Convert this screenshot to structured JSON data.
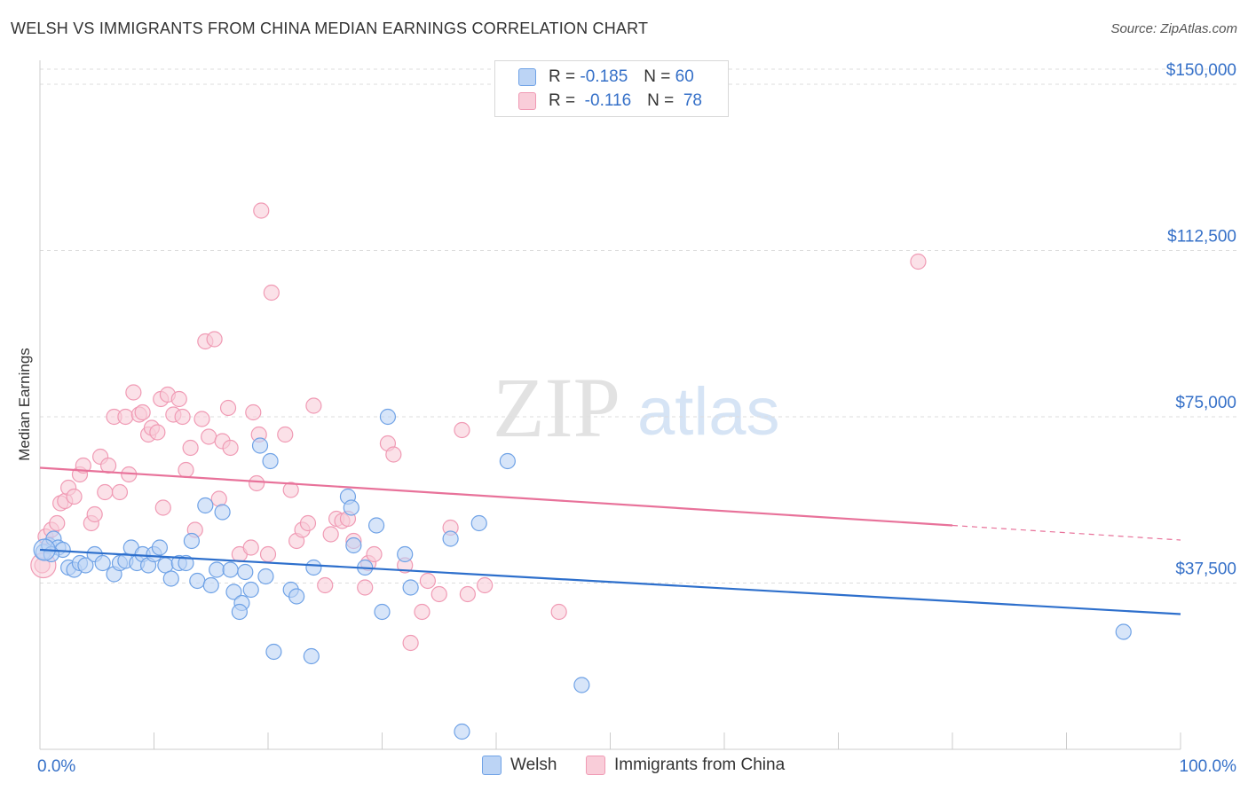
{
  "title": "WELSH VS IMMIGRANTS FROM CHINA MEDIAN EARNINGS CORRELATION CHART",
  "source": "Source: ZipAtlas.com",
  "watermark": {
    "zip": "ZIP",
    "atlas": "atlas"
  },
  "legend": {
    "rows": [
      {
        "r_label": "R =",
        "r_value": "-0.185",
        "n_label": "N =",
        "n_value": "60"
      },
      {
        "r_label": "R =",
        "r_value": "-0.116",
        "n_label": "N =",
        "n_value": "78"
      }
    ]
  },
  "colors": {
    "welsh": "#6fa2e6",
    "welsh_fill": "#bcd4f5",
    "welsh_line": "#2d6fcc",
    "china": "#f09ab4",
    "china_fill": "#f9cdd9",
    "china_line": "#e8729a",
    "axis_label": "#3570c8"
  },
  "chart_data": {
    "type": "scatter",
    "title": "WELSH VS IMMIGRANTS FROM CHINA MEDIAN EARNINGS CORRELATION CHART",
    "xlabel": "",
    "ylabel": "Median Earnings",
    "xlim": [
      0,
      100
    ],
    "ylim": [
      0,
      155000
    ],
    "x_tick_labels": [
      "0.0%",
      "100.0%"
    ],
    "y_ticks": [
      37500,
      75000,
      112500,
      150000
    ],
    "y_tick_labels": [
      "$37,500",
      "$75,000",
      "$112,500",
      "$150,000"
    ],
    "grid": true,
    "legend_position": "top-center",
    "series": [
      {
        "name": "Welsh",
        "r": -0.185,
        "n": 60,
        "trend": {
          "x": [
            0,
            100
          ],
          "y": [
            45000,
            30500
          ]
        },
        "points": [
          [
            0.3,
            44500
          ],
          [
            0.8,
            46000
          ],
          [
            1.2,
            47500
          ],
          [
            1.6,
            45500
          ],
          [
            2.0,
            45000
          ],
          [
            2.5,
            41000
          ],
          [
            3.0,
            40500
          ],
          [
            3.5,
            42000
          ],
          [
            4.0,
            41500
          ],
          [
            4.8,
            44000
          ],
          [
            5.5,
            42000
          ],
          [
            6.5,
            39500
          ],
          [
            7.0,
            42000
          ],
          [
            7.5,
            42500
          ],
          [
            8.0,
            45500
          ],
          [
            8.5,
            42000
          ],
          [
            9.0,
            44000
          ],
          [
            9.5,
            41500
          ],
          [
            10.0,
            44000
          ],
          [
            11.0,
            41500
          ],
          [
            10.5,
            45500
          ],
          [
            11.5,
            38500
          ],
          [
            12.2,
            42000
          ],
          [
            12.8,
            42000
          ],
          [
            13.3,
            47000
          ],
          [
            13.8,
            38000
          ],
          [
            14.5,
            55000
          ],
          [
            15.0,
            37000
          ],
          [
            15.5,
            40500
          ],
          [
            16.0,
            53500
          ],
          [
            16.7,
            40500
          ],
          [
            17.0,
            35500
          ],
          [
            18.0,
            40000
          ],
          [
            17.7,
            33000
          ],
          [
            17.5,
            31000
          ],
          [
            18.5,
            36000
          ],
          [
            19.3,
            68500
          ],
          [
            20.2,
            65000
          ],
          [
            19.8,
            39000
          ],
          [
            20.5,
            22000
          ],
          [
            22.0,
            36000
          ],
          [
            22.5,
            34500
          ],
          [
            24.0,
            41000
          ],
          [
            23.8,
            21000
          ],
          [
            27.0,
            57000
          ],
          [
            27.3,
            54500
          ],
          [
            27.5,
            46000
          ],
          [
            28.5,
            41000
          ],
          [
            29.5,
            50500
          ],
          [
            30.0,
            31000
          ],
          [
            30.5,
            75000
          ],
          [
            32.0,
            44000
          ],
          [
            32.5,
            36500
          ],
          [
            36.0,
            47500
          ],
          [
            38.5,
            51000
          ],
          [
            41.0,
            65000
          ],
          [
            37.0,
            4000
          ],
          [
            47.5,
            14500
          ],
          [
            95.0,
            26500
          ],
          [
            1.0,
            44000
          ]
        ]
      },
      {
        "name": "Immigrants from China",
        "r": -0.116,
        "n": 78,
        "trend": {
          "x": [
            0,
            80
          ],
          "y": [
            63500,
            50500
          ]
        },
        "trend_dashed": {
          "x": [
            80,
            100
          ],
          "y": [
            50500,
            47200
          ]
        },
        "points": [
          [
            0.2,
            41500
          ],
          [
            0.5,
            48000
          ],
          [
            1.0,
            49500
          ],
          [
            1.5,
            51000
          ],
          [
            1.8,
            55500
          ],
          [
            2.2,
            56000
          ],
          [
            2.5,
            59000
          ],
          [
            3.0,
            57000
          ],
          [
            3.5,
            62000
          ],
          [
            3.8,
            64000
          ],
          [
            4.5,
            51000
          ],
          [
            4.8,
            53000
          ],
          [
            5.3,
            66000
          ],
          [
            5.7,
            58000
          ],
          [
            6.0,
            64000
          ],
          [
            6.5,
            75000
          ],
          [
            7.0,
            58000
          ],
          [
            7.5,
            75000
          ],
          [
            7.8,
            62000
          ],
          [
            8.2,
            80500
          ],
          [
            8.7,
            75500
          ],
          [
            9.0,
            76000
          ],
          [
            9.5,
            71000
          ],
          [
            9.8,
            72500
          ],
          [
            10.3,
            71500
          ],
          [
            10.6,
            79000
          ],
          [
            10.8,
            54500
          ],
          [
            11.2,
            80000
          ],
          [
            11.7,
            75500
          ],
          [
            12.2,
            79000
          ],
          [
            12.5,
            75000
          ],
          [
            12.8,
            63000
          ],
          [
            13.2,
            68000
          ],
          [
            13.6,
            49500
          ],
          [
            14.2,
            74500
          ],
          [
            14.5,
            92000
          ],
          [
            14.8,
            70500
          ],
          [
            15.3,
            92500
          ],
          [
            15.7,
            56500
          ],
          [
            16.0,
            69500
          ],
          [
            16.5,
            77000
          ],
          [
            16.7,
            68000
          ],
          [
            17.5,
            44000
          ],
          [
            18.5,
            45500
          ],
          [
            18.7,
            76000
          ],
          [
            19.2,
            71000
          ],
          [
            19.4,
            121500
          ],
          [
            19.0,
            60000
          ],
          [
            20.0,
            44000
          ],
          [
            20.3,
            103000
          ],
          [
            21.5,
            71000
          ],
          [
            22.0,
            58500
          ],
          [
            22.5,
            47000
          ],
          [
            23.0,
            49500
          ],
          [
            23.5,
            51000
          ],
          [
            24.0,
            77500
          ],
          [
            25.0,
            37000
          ],
          [
            25.5,
            48500
          ],
          [
            26.0,
            52000
          ],
          [
            26.5,
            51500
          ],
          [
            27.0,
            52000
          ],
          [
            27.5,
            47000
          ],
          [
            28.5,
            36500
          ],
          [
            28.8,
            42000
          ],
          [
            29.3,
            44000
          ],
          [
            30.5,
            69000
          ],
          [
            31.0,
            66500
          ],
          [
            32.0,
            41500
          ],
          [
            32.5,
            24000
          ],
          [
            33.5,
            31000
          ],
          [
            35.0,
            35000
          ],
          [
            36.0,
            50000
          ],
          [
            37.0,
            72000
          ],
          [
            37.5,
            35000
          ],
          [
            39.0,
            37000
          ],
          [
            45.5,
            31000
          ],
          [
            77.0,
            110000
          ],
          [
            34.0,
            38000
          ]
        ]
      }
    ]
  }
}
